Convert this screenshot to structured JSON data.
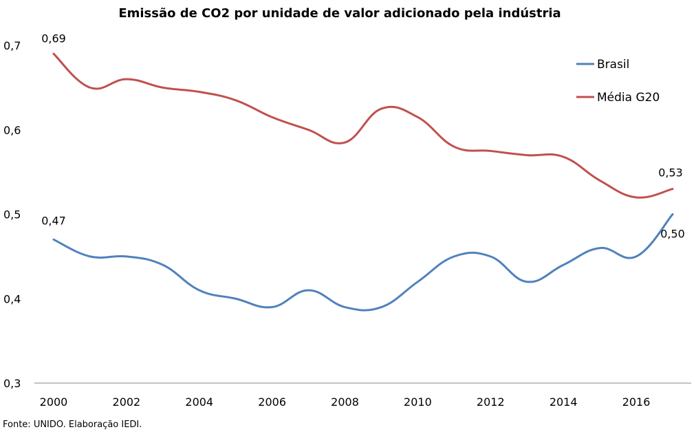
{
  "chart_data": {
    "type": "line",
    "title": "Emissão de CO2 por unidade de valor adicionado pela indústria",
    "xlabel": "",
    "ylabel": "",
    "x": [
      2000,
      2001,
      2002,
      2003,
      2004,
      2005,
      2006,
      2007,
      2008,
      2009,
      2010,
      2011,
      2012,
      2013,
      2014,
      2015,
      2016,
      2017
    ],
    "x_tick_labels": [
      "2000",
      "2002",
      "2004",
      "2006",
      "2008",
      "2010",
      "2012",
      "2014",
      "2016"
    ],
    "x_tick_values": [
      2000,
      2002,
      2004,
      2006,
      2008,
      2010,
      2012,
      2014,
      2016
    ],
    "y_tick_labels": [
      "0,3",
      "0,4",
      "0,5",
      "0,6",
      "0,7"
    ],
    "y_tick_values": [
      0.3,
      0.4,
      0.5,
      0.6,
      0.7
    ],
    "ylim": [
      0.3,
      0.7
    ],
    "xlim": [
      2000,
      2017
    ],
    "grid": false,
    "legend_position": "top-right",
    "series": [
      {
        "name": "Brasil",
        "color": "#4F81BD",
        "values": [
          0.47,
          0.45,
          0.45,
          0.44,
          0.41,
          0.4,
          0.39,
          0.41,
          0.39,
          0.39,
          0.42,
          0.45,
          0.45,
          0.42,
          0.44,
          0.46,
          0.45,
          0.5
        ]
      },
      {
        "name": "Média G20",
        "color": "#C0504D",
        "values": [
          0.69,
          0.65,
          0.66,
          0.65,
          0.645,
          0.635,
          0.615,
          0.6,
          0.585,
          0.625,
          0.615,
          0.58,
          0.575,
          0.57,
          0.568,
          0.54,
          0.52,
          0.53
        ]
      }
    ],
    "data_labels": [
      {
        "series": "Média G20",
        "x": 2000,
        "text": "0,69"
      },
      {
        "series": "Brasil",
        "x": 2000,
        "text": "0,47"
      },
      {
        "series": "Média G20",
        "x": 2017,
        "text": "0,53"
      },
      {
        "series": "Brasil",
        "x": 2017,
        "text": "0,50"
      }
    ]
  },
  "source_note": "Fonte: UNIDO. Elaboração IEDI."
}
